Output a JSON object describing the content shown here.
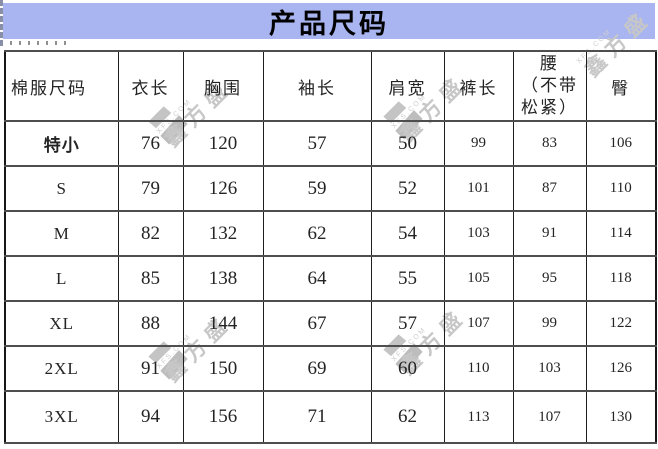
{
  "banner": {
    "title": "产品尺码",
    "bg_color": "#a9b5f1"
  },
  "table": {
    "headers": [
      "棉服尺码",
      "衣长",
      "胸围",
      "袖长",
      "肩宽",
      "裤长",
      "腰\n（不带\n松紧）",
      "臀"
    ],
    "rows": [
      {
        "size": "特小",
        "bold": true,
        "values": [
          "76",
          "120",
          "57",
          "50",
          "99",
          "83",
          "106"
        ]
      },
      {
        "size": "S",
        "bold": false,
        "values": [
          "79",
          "126",
          "59",
          "52",
          "101",
          "87",
          "110"
        ]
      },
      {
        "size": "M",
        "bold": false,
        "values": [
          "82",
          "132",
          "62",
          "54",
          "103",
          "91",
          "114"
        ]
      },
      {
        "size": "L",
        "bold": false,
        "values": [
          "85",
          "138",
          "64",
          "55",
          "105",
          "95",
          "118"
        ]
      },
      {
        "size": "XL",
        "bold": false,
        "values": [
          "88",
          "144",
          "67",
          "57",
          "107",
          "99",
          "122"
        ]
      },
      {
        "size": "2XL",
        "bold": false,
        "values": [
          "91",
          "150",
          "69",
          "60",
          "110",
          "103",
          "126"
        ]
      },
      {
        "size": "3XL",
        "bold": false,
        "values": [
          "94",
          "156",
          "71",
          "62",
          "113",
          "107",
          "130"
        ]
      }
    ]
  },
  "watermark": {
    "brand_text": "鑫方盛",
    "domain_text": "XFS.COM",
    "color": "#c7c7c7"
  }
}
